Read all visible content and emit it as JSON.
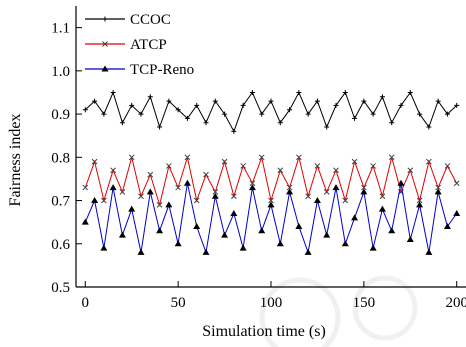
{
  "chart_data": {
    "type": "line",
    "title": "",
    "xlabel": "Simulation time (s)",
    "ylabel": "Fairness index",
    "xlim": [
      -5,
      205
    ],
    "ylim": [
      0.5,
      1.15
    ],
    "xticks": [
      0,
      50,
      100,
      150,
      200
    ],
    "yticks": [
      0.5,
      0.6,
      0.7,
      0.8,
      0.9,
      1.0,
      1.1
    ],
    "xtick_labels": [
      "0",
      "50",
      "100",
      "150",
      "200"
    ],
    "ytick_labels": [
      "0.5",
      "0.6",
      "0.7",
      "0.8",
      "0.9",
      "1.0",
      "1.1"
    ],
    "grid": false,
    "legend_position": "top-left",
    "series": [
      {
        "name": "CCOC",
        "color": "#000000",
        "marker": "plus",
        "x": [
          0,
          5,
          10,
          15,
          20,
          25,
          30,
          35,
          40,
          45,
          50,
          55,
          60,
          65,
          70,
          75,
          80,
          85,
          90,
          95,
          100,
          105,
          110,
          115,
          120,
          125,
          130,
          135,
          140,
          145,
          150,
          155,
          160,
          165,
          170,
          175,
          180,
          185,
          190,
          195,
          200
        ],
        "y": [
          0.91,
          0.93,
          0.9,
          0.95,
          0.88,
          0.92,
          0.9,
          0.94,
          0.87,
          0.93,
          0.91,
          0.89,
          0.92,
          0.88,
          0.93,
          0.9,
          0.86,
          0.92,
          0.95,
          0.9,
          0.93,
          0.88,
          0.91,
          0.95,
          0.9,
          0.93,
          0.87,
          0.92,
          0.95,
          0.89,
          0.93,
          0.9,
          0.94,
          0.88,
          0.92,
          0.95,
          0.9,
          0.87,
          0.93,
          0.9,
          0.92
        ]
      },
      {
        "name": "ATCP",
        "color": "#e00000",
        "marker": "x",
        "x": [
          0,
          5,
          10,
          15,
          20,
          25,
          30,
          35,
          40,
          45,
          50,
          55,
          60,
          65,
          70,
          75,
          80,
          85,
          90,
          95,
          100,
          105,
          110,
          115,
          120,
          125,
          130,
          135,
          140,
          145,
          150,
          155,
          160,
          165,
          170,
          175,
          180,
          185,
          190,
          195,
          200
        ],
        "y": [
          0.73,
          0.79,
          0.7,
          0.77,
          0.72,
          0.8,
          0.71,
          0.76,
          0.69,
          0.78,
          0.73,
          0.8,
          0.7,
          0.76,
          0.72,
          0.79,
          0.71,
          0.78,
          0.74,
          0.8,
          0.7,
          0.77,
          0.73,
          0.8,
          0.71,
          0.78,
          0.72,
          0.77,
          0.7,
          0.79,
          0.73,
          0.78,
          0.71,
          0.8,
          0.72,
          0.77,
          0.7,
          0.79,
          0.73,
          0.78,
          0.74
        ]
      },
      {
        "name": "TCP-Reno",
        "color": "#0000cc",
        "marker": "triangle",
        "x": [
          0,
          5,
          10,
          15,
          20,
          25,
          30,
          35,
          40,
          45,
          50,
          55,
          60,
          65,
          70,
          75,
          80,
          85,
          90,
          95,
          100,
          105,
          110,
          115,
          120,
          125,
          130,
          135,
          140,
          145,
          150,
          155,
          160,
          165,
          170,
          175,
          180,
          185,
          190,
          195,
          200
        ],
        "y": [
          0.65,
          0.7,
          0.59,
          0.73,
          0.62,
          0.68,
          0.58,
          0.72,
          0.63,
          0.69,
          0.6,
          0.74,
          0.64,
          0.58,
          0.71,
          0.62,
          0.67,
          0.59,
          0.73,
          0.63,
          0.69,
          0.6,
          0.72,
          0.64,
          0.58,
          0.7,
          0.62,
          0.73,
          0.6,
          0.66,
          0.72,
          0.59,
          0.68,
          0.63,
          0.74,
          0.61,
          0.69,
          0.58,
          0.72,
          0.64,
          0.67
        ]
      }
    ]
  }
}
